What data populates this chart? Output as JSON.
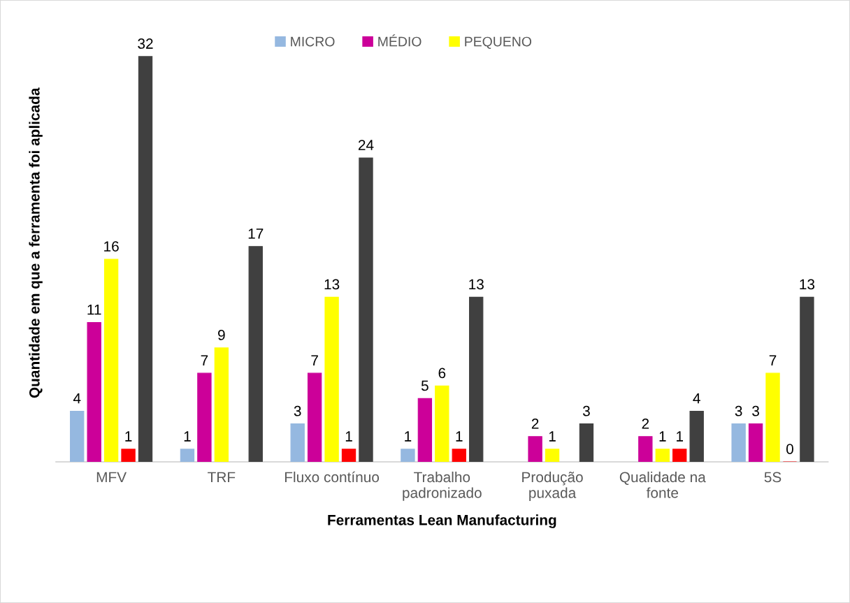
{
  "chart_data": {
    "type": "bar",
    "xlabel": "Ferramentas Lean Manufacturing",
    "ylabel": "Quantidade em que a ferramenta foi aplicada",
    "categories": [
      "MFV",
      "TRF",
      "Fluxo contínuo",
      "Trabalho padronizado",
      "Produção puxada",
      "Qualidade na fonte",
      "5S"
    ],
    "series": [
      {
        "name": "MICRO",
        "color": "#95b8e0",
        "values": [
          4,
          1,
          3,
          1,
          null,
          null,
          3
        ]
      },
      {
        "name": "MÉDIO",
        "color": "#cc0099",
        "values": [
          11,
          7,
          7,
          5,
          2,
          2,
          3
        ]
      },
      {
        "name": "PEQUENO",
        "color": "#ffff00",
        "values": [
          16,
          9,
          13,
          6,
          1,
          1,
          7
        ]
      },
      {
        "color": "#ff0000",
        "values": [
          1,
          null,
          1,
          1,
          null,
          1,
          0
        ]
      },
      {
        "color": "#404040",
        "values": [
          32,
          17,
          24,
          13,
          3,
          4,
          13
        ]
      }
    ],
    "data_labels": true,
    "legend": "top",
    "grid": false,
    "tick_labels": "x"
  }
}
